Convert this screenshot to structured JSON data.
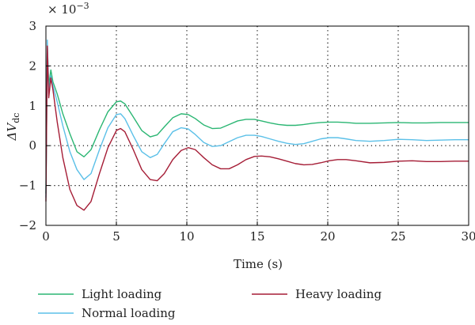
{
  "chart_data": {
    "type": "line",
    "title": "",
    "xlabel": "Time (s)",
    "ylabel": "ΔV_dc",
    "ylabel_main": "ΔV",
    "ylabel_sub": "dc",
    "y_multiplier": "× 10",
    "y_multiplier_exp": "−3",
    "xlim": [
      0,
      30
    ],
    "ylim": [
      -2,
      3
    ],
    "xticks": [
      0,
      5,
      10,
      15,
      20,
      25,
      30
    ],
    "yticks": [
      -2,
      -1,
      0,
      1,
      2,
      3
    ],
    "ytick_labels": [
      "−2",
      "−1",
      "0",
      "1",
      "2",
      "3"
    ],
    "grid": true,
    "legend_position": "bottom",
    "series": [
      {
        "name": "Light loading",
        "color": "#2bb673",
        "x": [
          0,
          0.1,
          0.2,
          0.35,
          0.5,
          0.8,
          1.2,
          1.7,
          2.2,
          2.7,
          3.2,
          3.8,
          4.4,
          5.0,
          5.3,
          5.6,
          6.2,
          6.8,
          7.4,
          7.9,
          8.4,
          9.0,
          9.6,
          10.1,
          10.6,
          11.2,
          11.8,
          12.4,
          13.0,
          13.6,
          14.2,
          14.8,
          15.3,
          15.9,
          16.5,
          17.1,
          17.7,
          18.3,
          18.9,
          19.5,
          20.1,
          20.7,
          21.3,
          22.0,
          23.0,
          24.0,
          25.0,
          26.0,
          27.0,
          28.0,
          29.0,
          30.0
        ],
        "values": [
          -1.2,
          2.5,
          1.5,
          1.9,
          1.6,
          1.3,
          0.8,
          0.3,
          -0.15,
          -0.28,
          -0.1,
          0.4,
          0.85,
          1.1,
          1.12,
          1.05,
          0.72,
          0.38,
          0.22,
          0.27,
          0.47,
          0.7,
          0.8,
          0.78,
          0.68,
          0.52,
          0.43,
          0.44,
          0.53,
          0.62,
          0.66,
          0.66,
          0.62,
          0.57,
          0.53,
          0.51,
          0.51,
          0.53,
          0.56,
          0.58,
          0.59,
          0.59,
          0.58,
          0.56,
          0.56,
          0.57,
          0.58,
          0.57,
          0.57,
          0.58,
          0.58,
          0.58
        ]
      },
      {
        "name": "Normal loading",
        "color": "#5bc0e8",
        "x": [
          0,
          0.1,
          0.2,
          0.35,
          0.5,
          0.8,
          1.2,
          1.7,
          2.2,
          2.7,
          3.2,
          3.8,
          4.4,
          5.0,
          5.3,
          5.6,
          6.2,
          6.8,
          7.4,
          7.9,
          8.4,
          9.0,
          9.6,
          10.1,
          10.6,
          11.2,
          11.8,
          12.4,
          13.0,
          13.6,
          14.2,
          14.8,
          15.3,
          15.9,
          16.5,
          17.1,
          17.7,
          18.3,
          18.9,
          19.5,
          20.1,
          20.7,
          21.3,
          22.0,
          23.0,
          24.0,
          25.0,
          26.0,
          27.0,
          28.0,
          29.0,
          30.0
        ],
        "values": [
          -1.3,
          2.65,
          1.3,
          1.75,
          1.5,
          1.1,
          0.5,
          -0.15,
          -0.6,
          -0.85,
          -0.7,
          -0.1,
          0.45,
          0.78,
          0.8,
          0.68,
          0.25,
          -0.15,
          -0.3,
          -0.22,
          0.05,
          0.35,
          0.45,
          0.42,
          0.28,
          0.08,
          -0.02,
          0.0,
          0.1,
          0.2,
          0.26,
          0.26,
          0.23,
          0.17,
          0.11,
          0.06,
          0.03,
          0.05,
          0.11,
          0.17,
          0.2,
          0.2,
          0.17,
          0.13,
          0.11,
          0.13,
          0.16,
          0.15,
          0.13,
          0.14,
          0.15,
          0.15
        ]
      },
      {
        "name": "Heavy loading",
        "color": "#a51d36",
        "x": [
          0,
          0.1,
          0.2,
          0.35,
          0.5,
          0.8,
          1.2,
          1.7,
          2.2,
          2.7,
          3.2,
          3.8,
          4.4,
          5.0,
          5.3,
          5.6,
          6.2,
          6.8,
          7.4,
          7.9,
          8.4,
          9.0,
          9.6,
          10.1,
          10.6,
          11.2,
          11.8,
          12.4,
          13.0,
          13.6,
          14.2,
          14.8,
          15.3,
          15.9,
          16.5,
          17.1,
          17.7,
          18.3,
          18.9,
          19.5,
          20.1,
          20.7,
          21.3,
          22.0,
          23.0,
          24.0,
          25.0,
          26.0,
          27.0,
          28.0,
          29.0,
          30.0
        ],
        "values": [
          -1.4,
          2.5,
          1.2,
          1.7,
          1.4,
          0.6,
          -0.3,
          -1.1,
          -1.5,
          -1.62,
          -1.4,
          -0.7,
          -0.05,
          0.38,
          0.43,
          0.35,
          -0.1,
          -0.6,
          -0.85,
          -0.88,
          -0.7,
          -0.35,
          -0.12,
          -0.05,
          -0.1,
          -0.3,
          -0.48,
          -0.58,
          -0.58,
          -0.48,
          -0.35,
          -0.27,
          -0.26,
          -0.28,
          -0.33,
          -0.39,
          -0.45,
          -0.48,
          -0.47,
          -0.43,
          -0.38,
          -0.35,
          -0.35,
          -0.38,
          -0.43,
          -0.42,
          -0.39,
          -0.38,
          -0.4,
          -0.4,
          -0.39,
          -0.39
        ]
      }
    ]
  }
}
